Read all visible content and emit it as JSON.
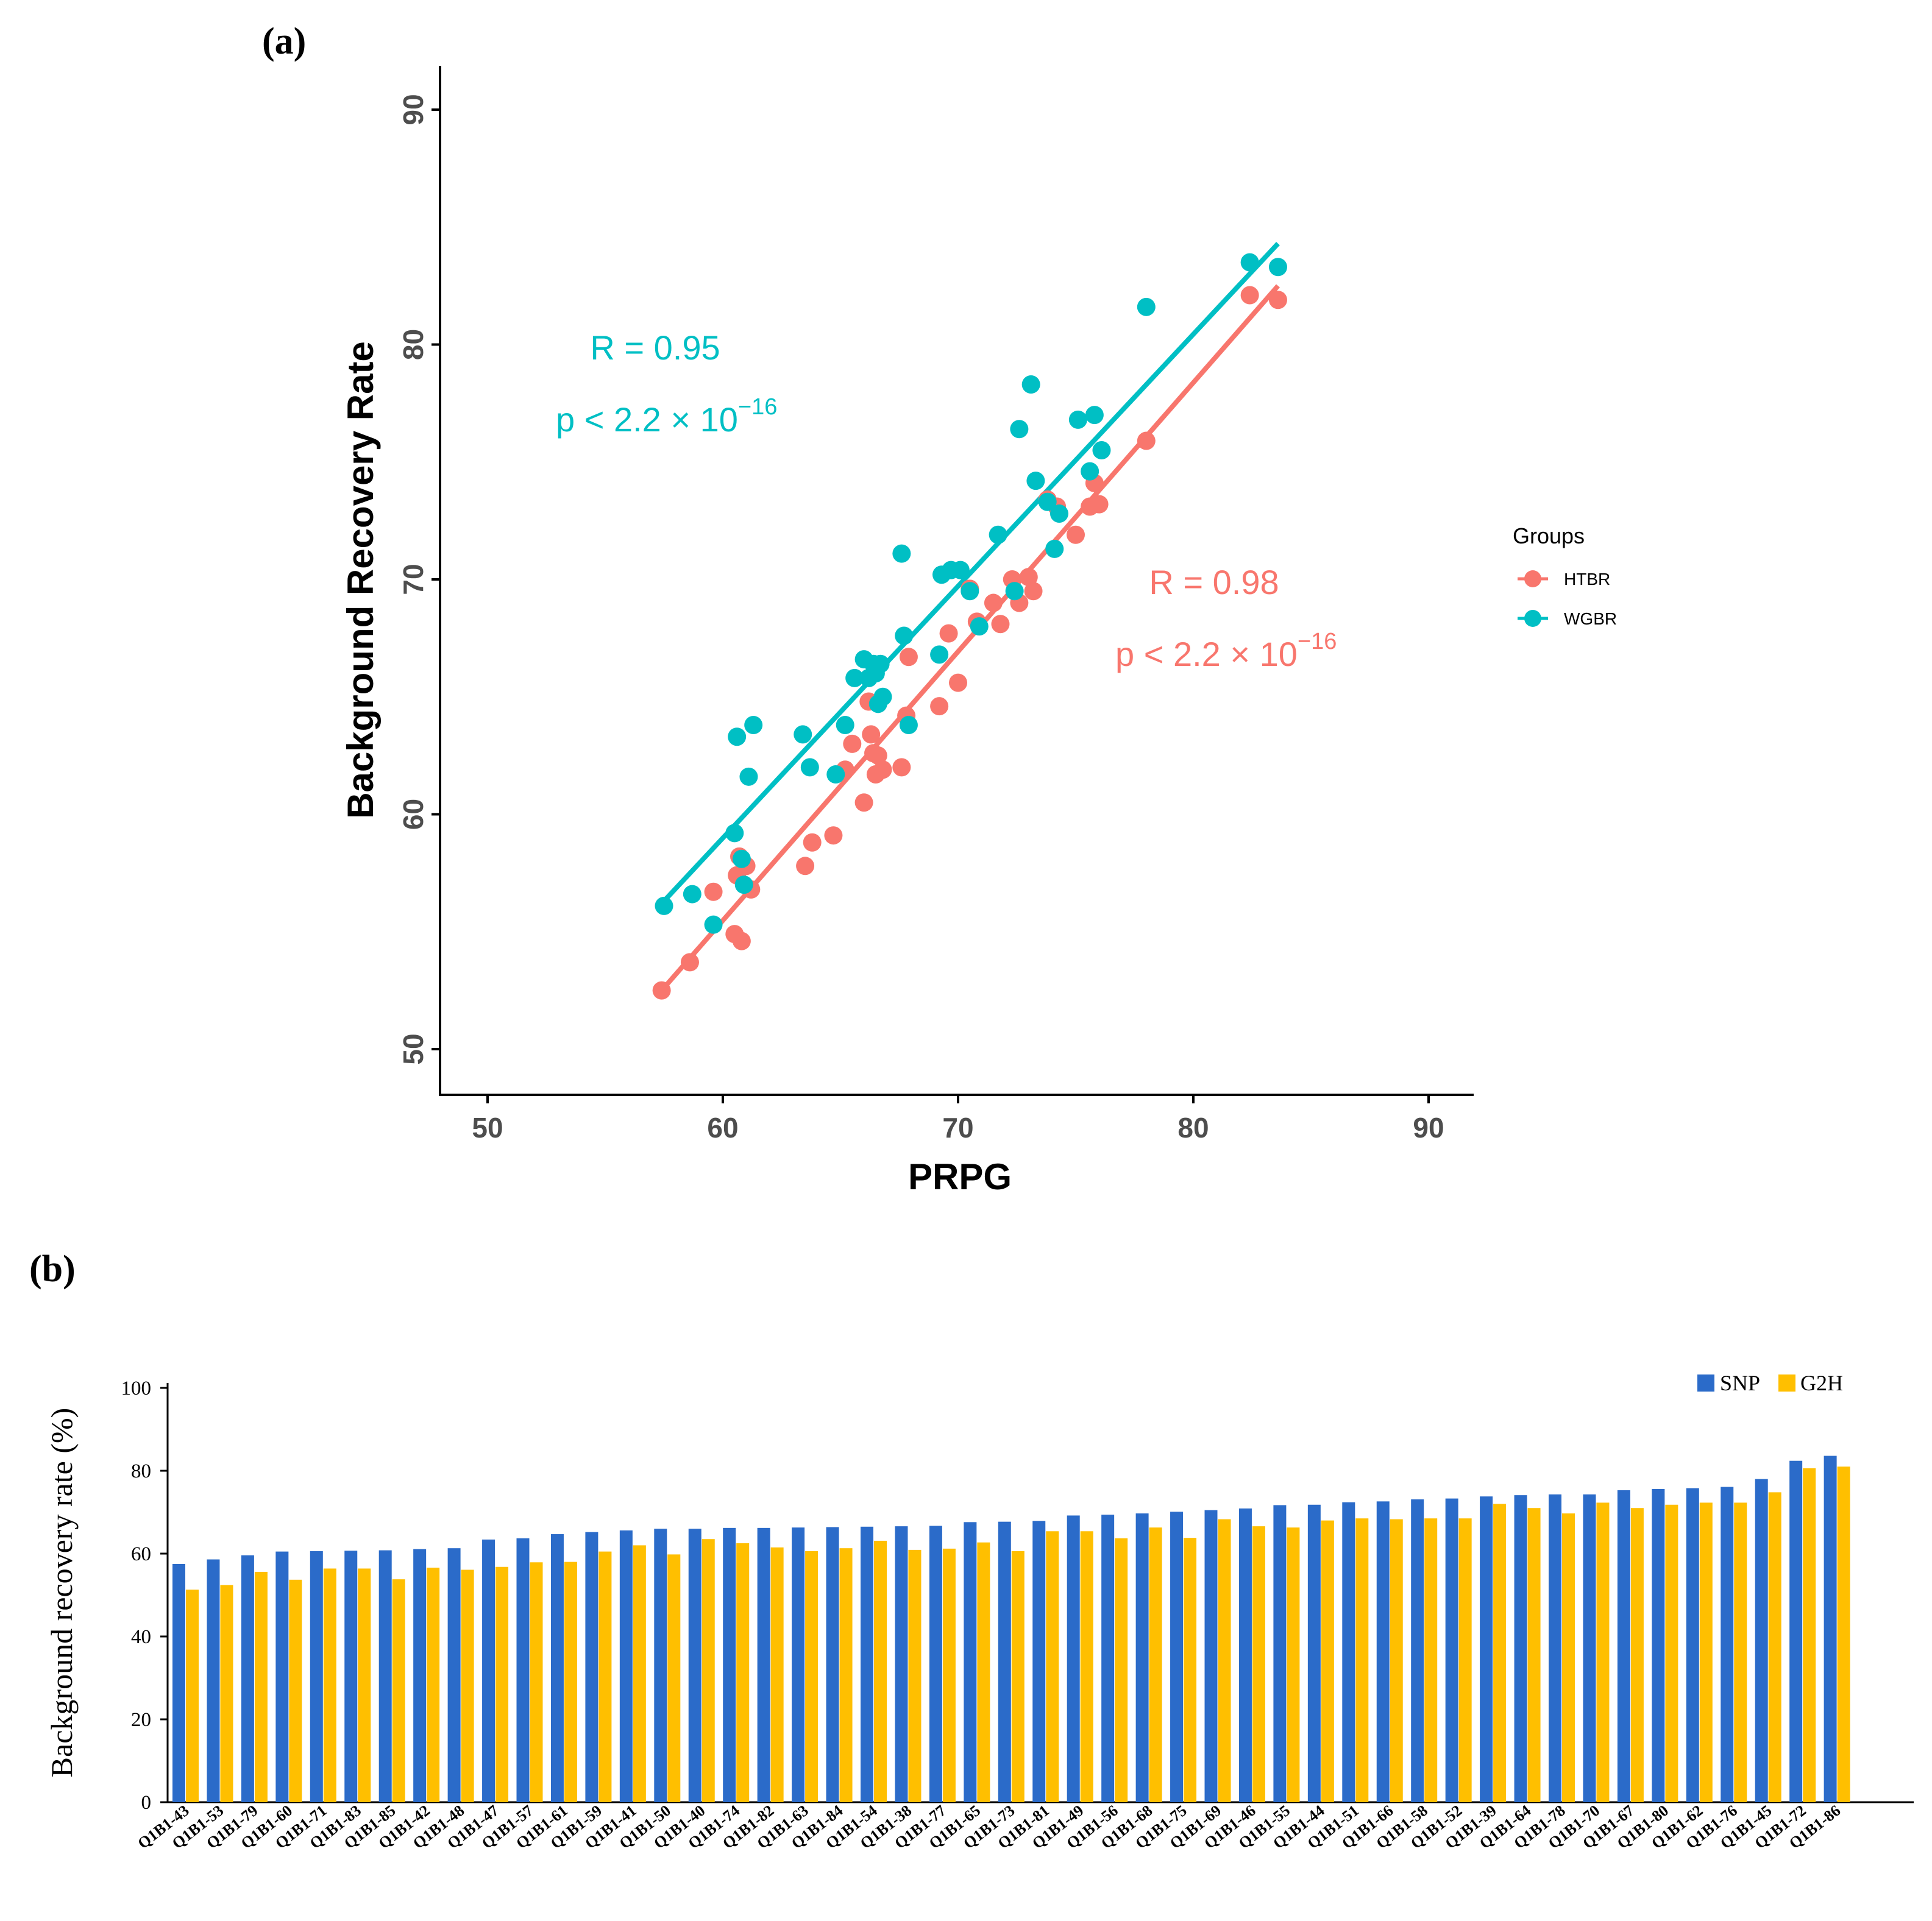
{
  "colors": {
    "htbr": "#F8766D",
    "wgbr": "#00BFC4",
    "snp": "#2B6BC9",
    "g2h": "#FFBF00"
  },
  "chart_data": [
    {
      "panel": "(a)",
      "type": "scatter",
      "xlabel": "PRPG",
      "ylabel": "Background Recovery Rate",
      "xlim": [
        48,
        92
      ],
      "ylim": [
        48,
        92
      ],
      "xticks": [
        50,
        60,
        70,
        80,
        90
      ],
      "yticks": [
        50,
        60,
        70,
        80,
        90
      ],
      "legend": {
        "title": "Groups",
        "position": "right"
      },
      "series": [
        {
          "name": "HTBR",
          "fit": {
            "x1": 57.4,
            "y1": 52.5,
            "x2": 83.6,
            "y2": 82.5
          },
          "annotation": {
            "r": "R = 0.98",
            "p": "p < 2.2 × 10",
            "exp": "−16"
          },
          "x": [
            57.4,
            58.6,
            59.6,
            60.5,
            60.6,
            60.7,
            60.8,
            61.0,
            61.2,
            63.5,
            63.8,
            64.7,
            65.2,
            65.5,
            66.0,
            66.2,
            66.3,
            66.4,
            66.5,
            66.6,
            66.8,
            67.6,
            67.8,
            67.9,
            69.2,
            69.6,
            70.0,
            70.5,
            70.8,
            71.5,
            71.8,
            72.3,
            72.6,
            73.0,
            73.2,
            73.8,
            74.2,
            75.0,
            75.6,
            75.8,
            76.0,
            78.0,
            82.4,
            83.6
          ],
          "y": [
            52.5,
            53.7,
            56.7,
            54.9,
            57.4,
            58.2,
            54.6,
            57.8,
            56.8,
            57.8,
            58.8,
            59.1,
            61.9,
            63.0,
            60.5,
            64.8,
            63.4,
            62.6,
            61.7,
            62.5,
            61.9,
            62.0,
            64.2,
            66.7,
            64.6,
            67.7,
            65.6,
            69.6,
            68.2,
            69.0,
            68.1,
            70.0,
            69.0,
            70.1,
            69.5,
            73.4,
            73.1,
            71.9,
            73.1,
            74.1,
            73.2,
            75.9,
            82.1,
            81.9
          ]
        },
        {
          "name": "WGBR",
          "fit": {
            "x1": 57.4,
            "y1": 56.2,
            "x2": 83.6,
            "y2": 84.3
          },
          "annotation": {
            "r": "R = 0.95",
            "p": "p < 2.2 × 10",
            "exp": "−16"
          },
          "x": [
            57.5,
            58.7,
            59.6,
            60.5,
            60.6,
            60.8,
            60.9,
            61.1,
            61.3,
            63.4,
            63.7,
            64.8,
            65.2,
            65.6,
            66.0,
            66.2,
            66.4,
            66.5,
            66.6,
            66.7,
            66.8,
            67.6,
            67.7,
            67.9,
            69.2,
            69.3,
            69.7,
            70.1,
            70.5,
            70.9,
            71.7,
            72.4,
            72.6,
            73.1,
            73.3,
            73.8,
            74.1,
            74.3,
            75.1,
            75.6,
            75.8,
            76.1,
            78.0,
            82.4,
            83.6
          ],
          "y": [
            56.1,
            56.6,
            55.3,
            59.2,
            63.3,
            58.1,
            57.0,
            61.6,
            63.8,
            63.4,
            62.0,
            61.7,
            63.8,
            65.8,
            66.6,
            65.8,
            66.4,
            66.0,
            64.7,
            66.4,
            65.0,
            71.1,
            67.6,
            63.8,
            66.8,
            70.2,
            70.4,
            70.4,
            69.5,
            68.0,
            71.9,
            69.5,
            76.4,
            78.3,
            74.2,
            73.3,
            71.3,
            72.8,
            76.8,
            74.6,
            77.0,
            75.5,
            81.6,
            83.5,
            83.3
          ]
        }
      ]
    },
    {
      "panel": "(b)",
      "type": "bar",
      "ylabel": "Background recovery rate (%)",
      "ylim": [
        0,
        100
      ],
      "yticks": [
        0,
        20,
        40,
        60,
        80,
        100
      ],
      "legend": {
        "position": "top-right"
      },
      "categories": [
        "Q1B1-43",
        "Q1B1-53",
        "Q1B1-79",
        "Q1B1-60",
        "Q1B1-71",
        "Q1B1-83",
        "Q1B1-85",
        "Q1B1-42",
        "Q1B1-48",
        "Q1B1-47",
        "Q1B1-57",
        "Q1B1-61",
        "Q1B1-59",
        "Q1B1-41",
        "Q1B1-50",
        "Q1B1-40",
        "Q1B1-74",
        "Q1B1-82",
        "Q1B1-63",
        "Q1B1-84",
        "Q1B1-54",
        "Q1B1-38",
        "Q1B1-77",
        "Q1B1-65",
        "Q1B1-73",
        "Q1B1-81",
        "Q1B1-49",
        "Q1B1-56",
        "Q1B1-68",
        "Q1B1-75",
        "Q1B1-69",
        "Q1B1-46",
        "Q1B1-55",
        "Q1B1-44",
        "Q1B1-51",
        "Q1B1-66",
        "Q1B1-58",
        "Q1B1-52",
        "Q1B1-39",
        "Q1B1-64",
        "Q1B1-78",
        "Q1B1-70",
        "Q1B1-67",
        "Q1B1-80",
        "Q1B1-62",
        "Q1B1-76",
        "Q1B1-45",
        "Q1B1-72",
        "Q1B1-86"
      ],
      "series": [
        {
          "name": "SNP",
          "values": [
            57.5,
            58.6,
            59.6,
            60.5,
            60.6,
            60.7,
            60.8,
            61.1,
            61.3,
            63.4,
            63.7,
            64.7,
            65.2,
            65.6,
            66.0,
            66.0,
            66.2,
            66.2,
            66.3,
            66.4,
            66.5,
            66.6,
            66.7,
            67.6,
            67.7,
            67.9,
            69.2,
            69.4,
            69.7,
            70.1,
            70.5,
            70.9,
            71.7,
            71.8,
            72.4,
            72.6,
            73.1,
            73.3,
            73.8,
            74.1,
            74.3,
            74.3,
            75.3,
            75.6,
            75.8,
            76.1,
            78.0,
            82.4,
            83.6
          ]
        },
        {
          "name": "G2H",
          "values": [
            51.3,
            52.4,
            55.6,
            53.7,
            56.4,
            56.4,
            53.8,
            56.6,
            56.1,
            56.8,
            57.9,
            58.0,
            60.5,
            62.0,
            59.8,
            63.5,
            62.5,
            61.5,
            60.6,
            61.3,
            63.1,
            60.9,
            61.2,
            62.7,
            60.6,
            65.4,
            65.4,
            63.7,
            66.3,
            63.8,
            68.3,
            66.6,
            66.3,
            68.0,
            68.5,
            68.3,
            68.5,
            68.5,
            72.0,
            71.0,
            69.7,
            72.3,
            71.0,
            71.8,
            72.3,
            72.3,
            74.8,
            80.6,
            81.0
          ]
        }
      ]
    }
  ]
}
